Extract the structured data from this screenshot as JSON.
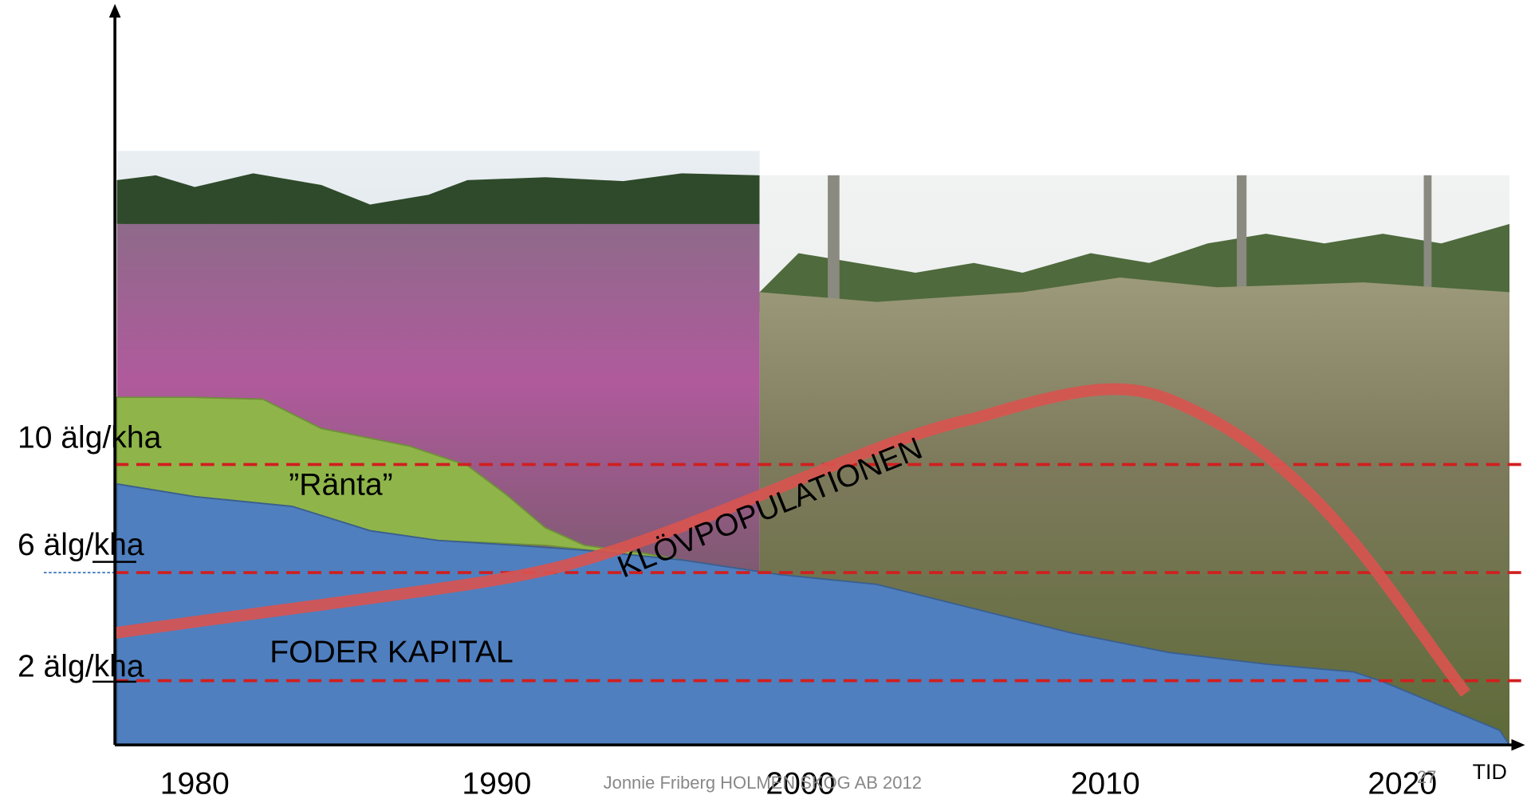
{
  "axis": {
    "y_labels": [
      "10 älg/kha",
      "6 älg/kha",
      "2 älg/kha"
    ],
    "x_labels": [
      "1980",
      "1990",
      "2000",
      "2010",
      "2020"
    ],
    "x_title": "TID"
  },
  "labels": {
    "interest": "”Ränta”",
    "capital": "FODER KAPITAL",
    "curve": "KLÖVPOPULATIONEN"
  },
  "footer": {
    "text": "Jonnie Friberg   HOLMEN SKOG AB  2012",
    "page": "27"
  }
}
